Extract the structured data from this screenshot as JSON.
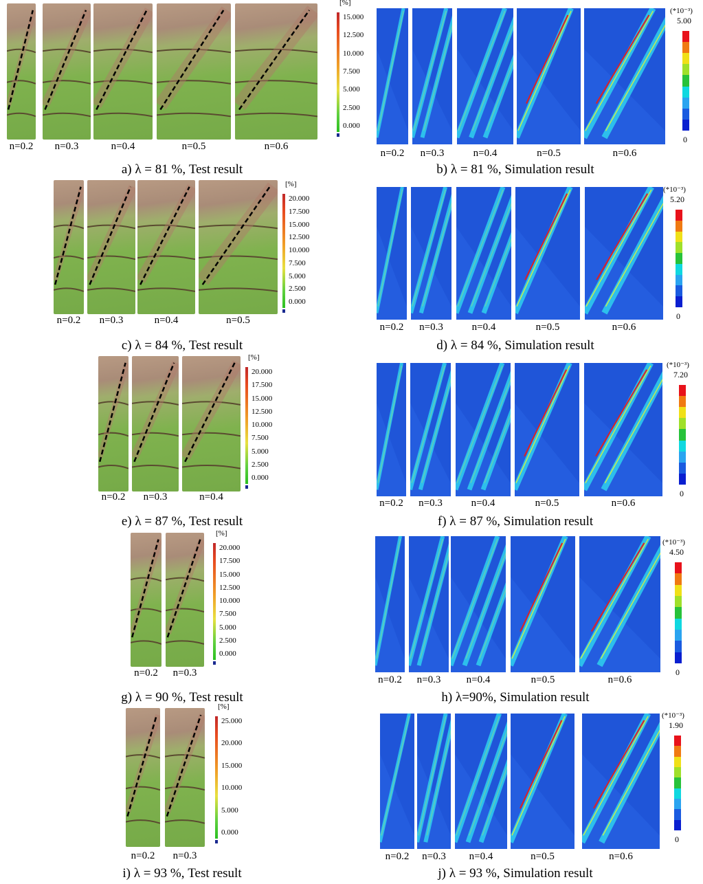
{
  "rows": [
    {
      "test": {
        "labels": [
          "n=0.2",
          "n=0.3",
          "n=0.4",
          "n=0.5",
          "n=0.6"
        ],
        "colorbar": {
          "unit": "[%]",
          "ticks": [
            "15.000",
            "12.500",
            "10.000",
            "7.500",
            "5.000",
            "2.500",
            "0.000"
          ]
        },
        "caption": "a) λ = 81 %, Test result"
      },
      "simulation": {
        "labels": [
          "n=0.2",
          "n=0.3",
          "n=0.4",
          "n=0.5",
          "n=0.6"
        ],
        "colorbar": {
          "unit": "(*10⁻³)",
          "max": "5.00",
          "min": "0"
        },
        "caption": "b) λ = 81 %, Simulation result"
      }
    },
    {
      "test": {
        "labels": [
          "n=0.2",
          "n=0.3",
          "n=0.4",
          "n=0.5"
        ],
        "colorbar": {
          "unit": "[%]",
          "ticks": [
            "20.000",
            "17.500",
            "15.000",
            "12.500",
            "10.000",
            "7.500",
            "5.000",
            "2.500",
            "0.000"
          ]
        },
        "caption": "c) λ = 84 %, Test result"
      },
      "simulation": {
        "labels": [
          "n=0.2",
          "n=0.3",
          "n=0.4",
          "n=0.5",
          "n=0.6"
        ],
        "colorbar": {
          "unit": "(*10⁻³)",
          "max": "5.20",
          "min": "0"
        },
        "caption": "d) λ = 84 %, Simulation result"
      }
    },
    {
      "test": {
        "labels": [
          "n=0.2",
          "n=0.3",
          "n=0.4"
        ],
        "colorbar": {
          "unit": "[%]",
          "ticks": [
            "20.000",
            "17.500",
            "15.000",
            "12.500",
            "10.000",
            "7.500",
            "5.000",
            "2.500",
            "0.000"
          ]
        },
        "caption": "e) λ = 87 %, Test result"
      },
      "simulation": {
        "labels": [
          "n=0.2",
          "n=0.3",
          "n=0.4",
          "n=0.5",
          "n=0.6"
        ],
        "colorbar": {
          "unit": "(*10⁻³)",
          "max": "7.20",
          "min": "0"
        },
        "caption": "f) λ = 87 %, Simulation result"
      }
    },
    {
      "test": {
        "labels": [
          "n=0.2",
          "n=0.3"
        ],
        "colorbar": {
          "unit": "[%]",
          "ticks": [
            "20.000",
            "17.500",
            "15.000",
            "12.500",
            "10.000",
            "7.500",
            "5.000",
            "2.500",
            "0.000"
          ]
        },
        "caption": "g) λ = 90 %, Test result"
      },
      "simulation": {
        "labels": [
          "n=0.2",
          "n=0.3",
          "n=0.4",
          "n=0.5",
          "n=0.6"
        ],
        "colorbar": {
          "unit": "(*10⁻³)",
          "max": "4.50",
          "min": "0"
        },
        "caption": "h) λ=90%, Simulation result"
      }
    },
    {
      "test": {
        "labels": [
          "n=0.2",
          "n=0.3"
        ],
        "colorbar": {
          "unit": "[%]",
          "ticks": [
            "25.000",
            "20.000",
            "15.000",
            "10.000",
            "5.000",
            "0.000"
          ]
        },
        "caption": "i) λ = 93 %, Test result"
      },
      "simulation": {
        "labels": [
          "n=0.2",
          "n=0.3",
          "n=0.4",
          "n=0.5",
          "n=0.6"
        ],
        "colorbar": {
          "unit": "(*10⁻³)",
          "max": "1.90",
          "min": "0"
        },
        "caption": "j) λ = 93 %, Simulation result"
      }
    }
  ]
}
